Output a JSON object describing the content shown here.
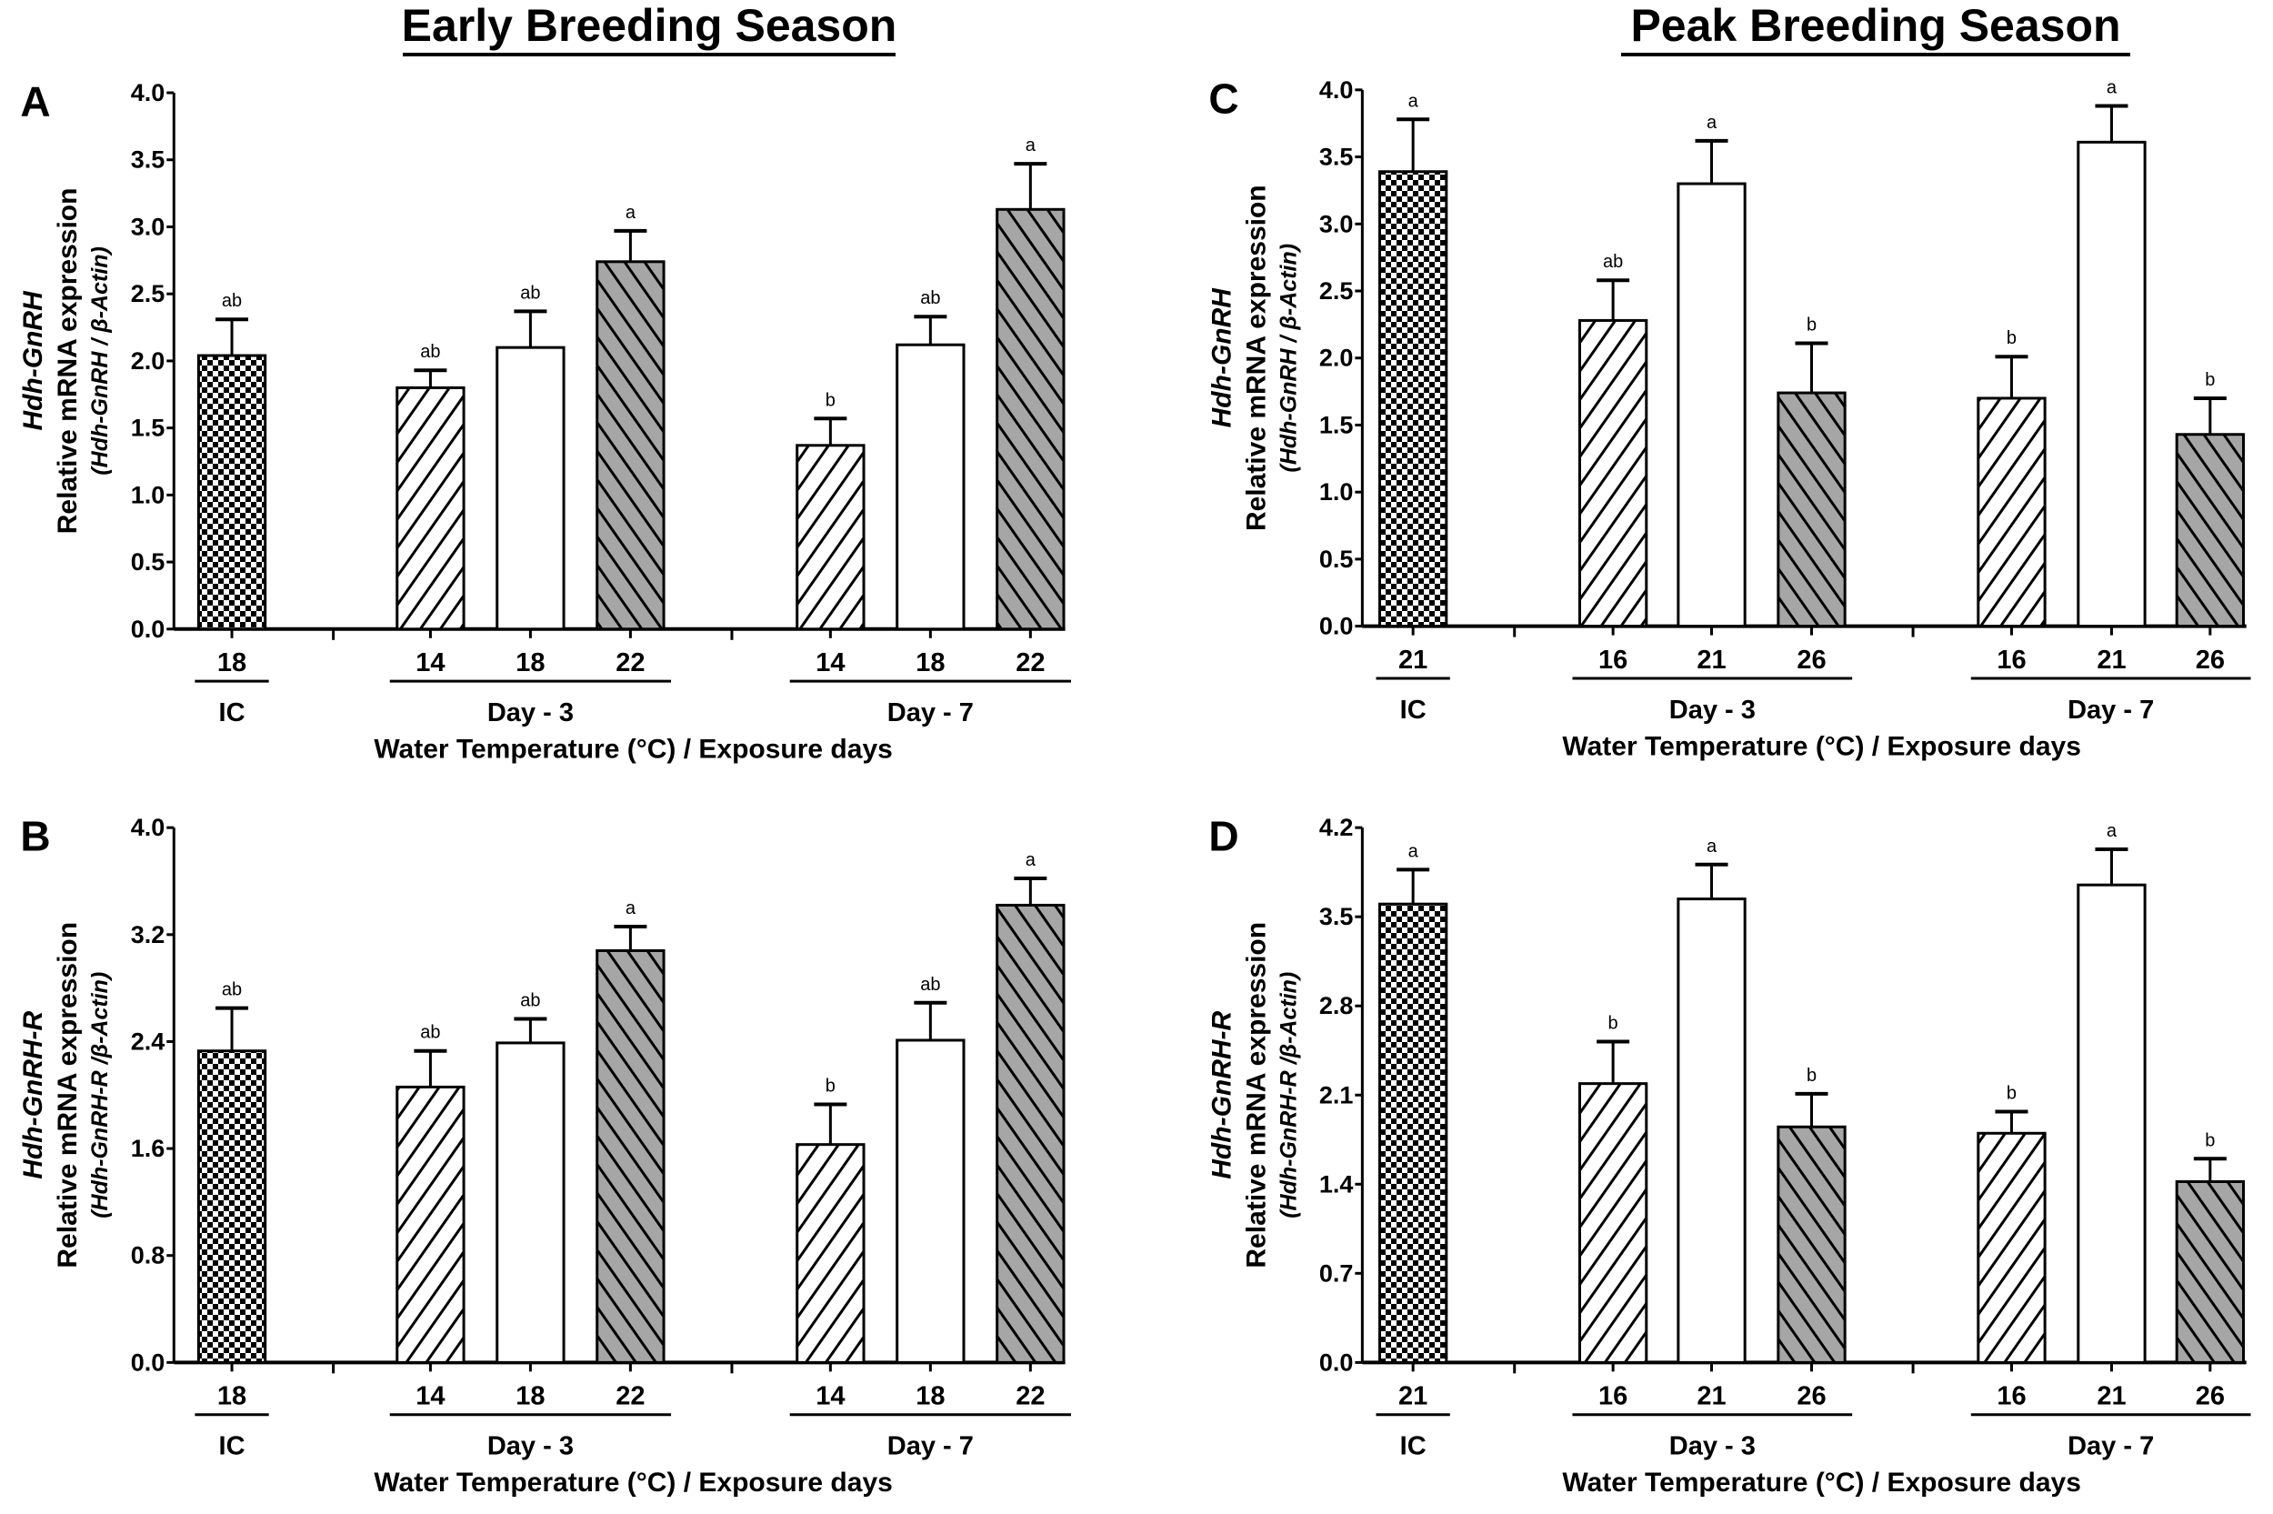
{
  "titles": {
    "left": "Early Breeding Season",
    "right": "Peak Breeding Season"
  },
  "colors": {
    "gray_fill": "#a6a6a6",
    "stroke": "#000000"
  },
  "chart_data": [
    {
      "type": "bar",
      "panel": "A",
      "ylabel_gene": "Hdh-GnRH",
      "ylabel": "Relative mRNA expression",
      "ylabel_ratio": "(Hdh-GnRH / β-Actin)",
      "xlabel": "Water Temperature (°C) / Exposure days",
      "ylim": [
        0,
        4.0
      ],
      "yticks": [
        "0.0",
        "0.5",
        "1.0",
        "1.5",
        "2.0",
        "2.5",
        "3.0",
        "3.5",
        "4.0"
      ],
      "groups": [
        "IC",
        "Day - 3",
        "Day - 7"
      ],
      "bars": [
        {
          "group": "IC",
          "temp": "18",
          "pattern": "checker",
          "value": 2.04,
          "error": 0.27,
          "sig": "ab"
        },
        {
          "group": "Day - 3",
          "temp": "14",
          "pattern": "hatch",
          "value": 1.8,
          "error": 0.13,
          "sig": "ab"
        },
        {
          "group": "Day - 3",
          "temp": "18",
          "pattern": "open",
          "value": 2.1,
          "error": 0.27,
          "sig": "ab"
        },
        {
          "group": "Day - 3",
          "temp": "22",
          "pattern": "gray",
          "value": 2.74,
          "error": 0.23,
          "sig": "a"
        },
        {
          "group": "Day - 7",
          "temp": "14",
          "pattern": "hatch",
          "value": 1.37,
          "error": 0.2,
          "sig": "b"
        },
        {
          "group": "Day - 7",
          "temp": "18",
          "pattern": "open",
          "value": 2.12,
          "error": 0.21,
          "sig": "ab"
        },
        {
          "group": "Day - 7",
          "temp": "22",
          "pattern": "gray",
          "value": 3.13,
          "error": 0.34,
          "sig": "a"
        }
      ]
    },
    {
      "type": "bar",
      "panel": "B",
      "ylabel_gene": "Hdh-GnRH-R",
      "ylabel": "Relative mRNA expression",
      "ylabel_ratio": "(Hdh-GnRH-R /β-Actin)",
      "xlabel": "Water Temperature (°C) / Exposure days",
      "ylim": [
        0,
        4.0
      ],
      "yticks": [
        "0.0",
        "0.8",
        "1.6",
        "2.4",
        "3.2",
        "4.0"
      ],
      "groups": [
        "IC",
        "Day - 3",
        "Day - 7"
      ],
      "bars": [
        {
          "group": "IC",
          "temp": "18",
          "pattern": "checker",
          "value": 2.33,
          "error": 0.32,
          "sig": "ab"
        },
        {
          "group": "Day - 3",
          "temp": "14",
          "pattern": "hatch",
          "value": 2.06,
          "error": 0.27,
          "sig": "ab"
        },
        {
          "group": "Day - 3",
          "temp": "18",
          "pattern": "open",
          "value": 2.39,
          "error": 0.18,
          "sig": "ab"
        },
        {
          "group": "Day - 3",
          "temp": "22",
          "pattern": "gray",
          "value": 3.08,
          "error": 0.18,
          "sig": "a"
        },
        {
          "group": "Day - 7",
          "temp": "14",
          "pattern": "hatch",
          "value": 1.63,
          "error": 0.3,
          "sig": "b"
        },
        {
          "group": "Day - 7",
          "temp": "18",
          "pattern": "open",
          "value": 2.41,
          "error": 0.28,
          "sig": "ab"
        },
        {
          "group": "Day - 7",
          "temp": "22",
          "pattern": "gray",
          "value": 3.42,
          "error": 0.2,
          "sig": "a"
        }
      ]
    },
    {
      "type": "bar",
      "panel": "C",
      "ylabel_gene": "Hdh-GnRH",
      "ylabel": "Relative mRNA expression",
      "ylabel_ratio": "(Hdh-GnRH / β-Actin)",
      "xlabel": "Water Temperature (°C) / Exposure days",
      "ylim": [
        0,
        4.0
      ],
      "yticks": [
        "0.0",
        "0.5",
        "1.0",
        "1.5",
        "2.0",
        "2.5",
        "3.0",
        "3.5",
        "4.0"
      ],
      "groups": [
        "IC",
        "Day - 3",
        "Day - 7"
      ],
      "bars": [
        {
          "group": "IC",
          "temp": "21",
          "pattern": "checker",
          "value": 3.39,
          "error": 0.39,
          "sig": "a"
        },
        {
          "group": "Day - 3",
          "temp": "16",
          "pattern": "hatch",
          "value": 2.28,
          "error": 0.3,
          "sig": "ab"
        },
        {
          "group": "Day - 3",
          "temp": "21",
          "pattern": "open",
          "value": 3.3,
          "error": 0.32,
          "sig": "a"
        },
        {
          "group": "Day - 3",
          "temp": "26",
          "pattern": "gray",
          "value": 1.74,
          "error": 0.37,
          "sig": "b"
        },
        {
          "group": "Day - 7",
          "temp": "16",
          "pattern": "hatch",
          "value": 1.7,
          "error": 0.31,
          "sig": "b"
        },
        {
          "group": "Day - 7",
          "temp": "21",
          "pattern": "open",
          "value": 3.61,
          "error": 0.27,
          "sig": "a"
        },
        {
          "group": "Day - 7",
          "temp": "26",
          "pattern": "gray",
          "value": 1.43,
          "error": 0.27,
          "sig": "b"
        }
      ]
    },
    {
      "type": "bar",
      "panel": "D",
      "ylabel_gene": "Hdh-GnRH-R",
      "ylabel": "Relative mRNA expression",
      "ylabel_ratio": "(Hdh-GnRH-R /β-Actin)",
      "xlabel": "Water Temperature (°C) / Exposure days",
      "ylim": [
        0,
        4.2
      ],
      "yticks": [
        "0.0",
        "0.7",
        "1.4",
        "2.1",
        "2.8",
        "3.5",
        "4.2"
      ],
      "groups": [
        "IC",
        "Day - 3",
        "Day - 7"
      ],
      "bars": [
        {
          "group": "IC",
          "temp": "21",
          "pattern": "checker",
          "value": 3.6,
          "error": 0.27,
          "sig": "a"
        },
        {
          "group": "Day - 3",
          "temp": "16",
          "pattern": "hatch",
          "value": 2.19,
          "error": 0.33,
          "sig": "b"
        },
        {
          "group": "Day - 3",
          "temp": "21",
          "pattern": "open",
          "value": 3.64,
          "error": 0.27,
          "sig": "a"
        },
        {
          "group": "Day - 3",
          "temp": "26",
          "pattern": "gray",
          "value": 1.85,
          "error": 0.26,
          "sig": "b"
        },
        {
          "group": "Day - 7",
          "temp": "16",
          "pattern": "hatch",
          "value": 1.8,
          "error": 0.17,
          "sig": "b"
        },
        {
          "group": "Day - 7",
          "temp": "21",
          "pattern": "open",
          "value": 3.75,
          "error": 0.28,
          "sig": "a"
        },
        {
          "group": "Day - 7",
          "temp": "26",
          "pattern": "gray",
          "value": 1.42,
          "error": 0.18,
          "sig": "b"
        }
      ]
    }
  ]
}
